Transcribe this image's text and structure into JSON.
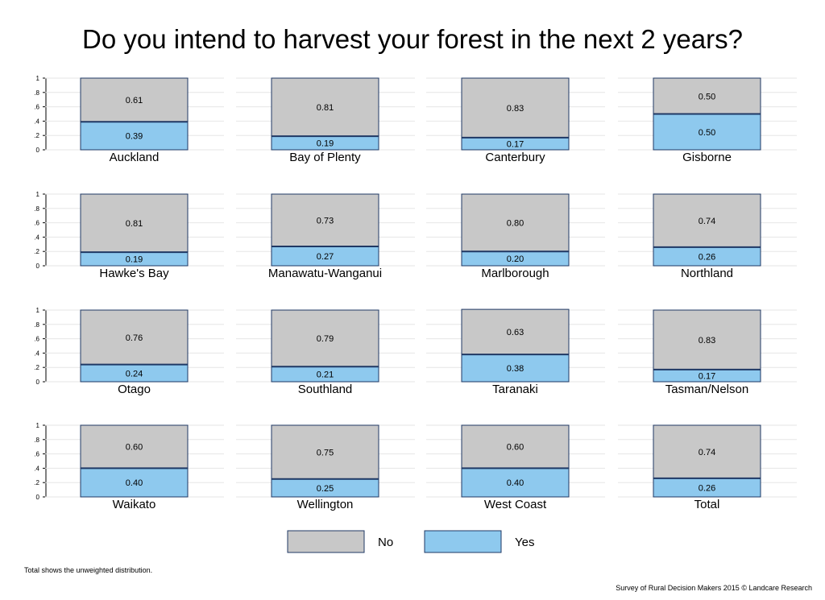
{
  "footnote": "Total shows the unweighted distribution.",
  "credit": "Survey of Rural Decision Makers 2015 © Landcare Research",
  "colors": {
    "no": "#c8c8c8",
    "yes": "#8ec9ee",
    "bar_border": "#1f3864",
    "grid": "#e6e6e6"
  },
  "chart_data": {
    "type": "bar",
    "stacked": true,
    "title": "Do you intend to harvest your forest in the next 2 years?",
    "ylim": [
      0,
      1
    ],
    "yticks": [
      "0",
      ".2",
      ".4",
      ".6",
      ".8",
      "1"
    ],
    "legend": [
      {
        "key": "no",
        "label": "No"
      },
      {
        "key": "yes",
        "label": "Yes"
      }
    ],
    "legend_position": "bottom",
    "grid": true,
    "panels": [
      {
        "region": "Auckland",
        "no": 0.61,
        "yes": 0.39,
        "no_label": "0.61",
        "yes_label": "0.39"
      },
      {
        "region": "Bay of Plenty",
        "no": 0.81,
        "yes": 0.19,
        "no_label": "0.81",
        "yes_label": "0.19"
      },
      {
        "region": "Canterbury",
        "no": 0.83,
        "yes": 0.17,
        "no_label": "0.83",
        "yes_label": "0.17"
      },
      {
        "region": "Gisborne",
        "no": 0.5,
        "yes": 0.5,
        "no_label": "0.50",
        "yes_label": "0.50"
      },
      {
        "region": "Hawke's Bay",
        "no": 0.81,
        "yes": 0.19,
        "no_label": "0.81",
        "yes_label": "0.19"
      },
      {
        "region": "Manawatu-Wanganui",
        "no": 0.73,
        "yes": 0.27,
        "no_label": "0.73",
        "yes_label": "0.27"
      },
      {
        "region": "Marlborough",
        "no": 0.8,
        "yes": 0.2,
        "no_label": "0.80",
        "yes_label": "0.20"
      },
      {
        "region": "Northland",
        "no": 0.74,
        "yes": 0.26,
        "no_label": "0.74",
        "yes_label": "0.26"
      },
      {
        "region": "Otago",
        "no": 0.76,
        "yes": 0.24,
        "no_label": "0.76",
        "yes_label": "0.24"
      },
      {
        "region": "Southland",
        "no": 0.79,
        "yes": 0.21,
        "no_label": "0.79",
        "yes_label": "0.21"
      },
      {
        "region": "Taranaki",
        "no": 0.63,
        "yes": 0.38,
        "no_label": "0.63",
        "yes_label": "0.38"
      },
      {
        "region": "Tasman/Nelson",
        "no": 0.83,
        "yes": 0.17,
        "no_label": "0.83",
        "yes_label": "0.17"
      },
      {
        "region": "Waikato",
        "no": 0.6,
        "yes": 0.4,
        "no_label": "0.60",
        "yes_label": "0.40"
      },
      {
        "region": "Wellington",
        "no": 0.75,
        "yes": 0.25,
        "no_label": "0.75",
        "yes_label": "0.25"
      },
      {
        "region": "West Coast",
        "no": 0.6,
        "yes": 0.4,
        "no_label": "0.60",
        "yes_label": "0.40"
      },
      {
        "region": "Total",
        "no": 0.74,
        "yes": 0.26,
        "no_label": "0.74",
        "yes_label": "0.26"
      }
    ]
  }
}
